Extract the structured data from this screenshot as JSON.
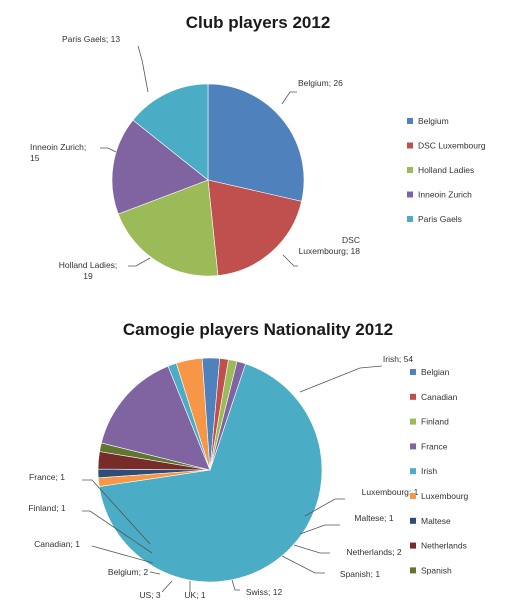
{
  "colors": {
    "blue": "#4F81BD",
    "red": "#C0504D",
    "green": "#9BBB59",
    "purple": "#8064A2",
    "aqua": "#4BACC6",
    "orange": "#F79646",
    "darkblue": "#2C4D75",
    "darkred": "#772C2A",
    "olive": "#5F7530"
  },
  "chart_data": [
    {
      "type": "pie",
      "title": "Club players 2012",
      "slices": [
        {
          "name": "Belgium",
          "value": 26,
          "label": "Belgium; 26",
          "color": "#4F81BD"
        },
        {
          "name": "DSC Luxembourg",
          "value": 18,
          "label": "DSC Luxembourg; 18",
          "color": "#C0504D"
        },
        {
          "name": "Holland Ladies",
          "value": 19,
          "label": "Holland Ladies; 19",
          "color": "#9BBB59"
        },
        {
          "name": "Inneoin Zurich",
          "value": 15,
          "label": "Inneoin Zurich; 15",
          "color": "#8064A2"
        },
        {
          "name": "Paris Gaels",
          "value": 13,
          "label": "Paris Gaels; 13",
          "color": "#4BACC6"
        }
      ],
      "legend": [
        "Belgium",
        "DSC Luxembourg",
        "Holland Ladies",
        "Inneoin Zurich",
        "Paris Gaels"
      ],
      "legend_position": "right"
    },
    {
      "type": "pie",
      "title": "Camogie players Nationality 2012",
      "slices": [
        {
          "name": "Irish",
          "value": 54,
          "label": "Irish; 54",
          "color": "#4BACC6"
        },
        {
          "name": "Luxembourg",
          "value": 1,
          "label": "Luxembourg; 1",
          "color": "#F79646"
        },
        {
          "name": "Maltese",
          "value": 1,
          "label": "Maltese; 1",
          "color": "#2C4D75"
        },
        {
          "name": "Netherlands",
          "value": 2,
          "label": "Netherlands; 2",
          "color": "#772C2A"
        },
        {
          "name": "Spanish",
          "value": 1,
          "label": "Spanish; 1",
          "color": "#5F7530"
        },
        {
          "name": "Swiss",
          "value": 12,
          "label": "Swiss; 12",
          "color": "#8064A2"
        },
        {
          "name": "UK",
          "value": 1,
          "label": "UK; 1",
          "color": "#4BACC6"
        },
        {
          "name": "US",
          "value": 3,
          "label": "US; 3",
          "color": "#F79646"
        },
        {
          "name": "Belgium",
          "value": 2,
          "label": "Belgium; 2",
          "color": "#4F81BD"
        },
        {
          "name": "Canadian",
          "value": 1,
          "label": "Canadian; 1",
          "color": "#C0504D"
        },
        {
          "name": "Finland",
          "value": 1,
          "label": "Finland; 1",
          "color": "#9BBB59"
        },
        {
          "name": "France",
          "value": 1,
          "label": "France; 1",
          "color": "#8064A2"
        }
      ],
      "legend": [
        "Belgian",
        "Canadian",
        "Finland",
        "France",
        "Irish",
        "Luxembourg",
        "Maltese",
        "Netherlands",
        "Spanish"
      ],
      "legend_position": "right"
    }
  ]
}
